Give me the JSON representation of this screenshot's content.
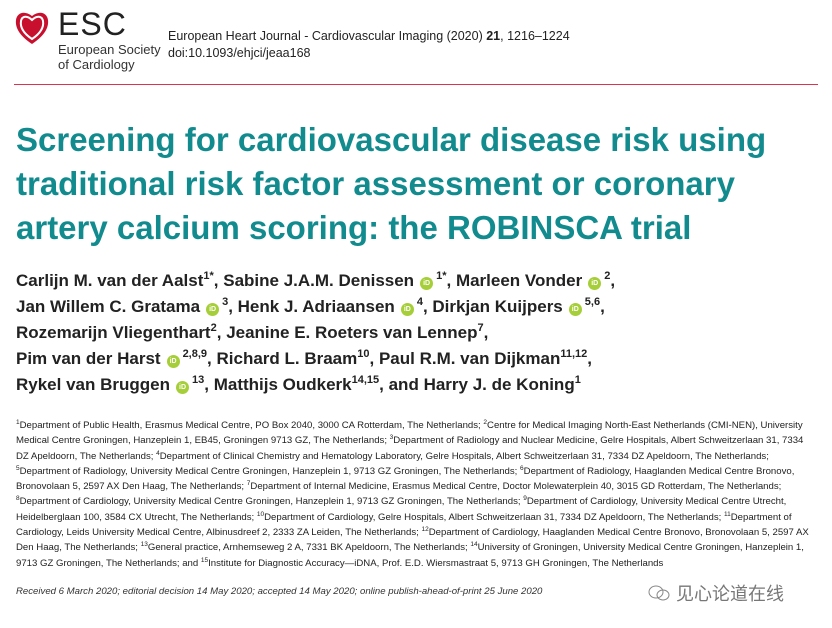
{
  "header": {
    "logo_text": "ESC",
    "society_line1": "European Society",
    "society_line2": "of Cardiology",
    "journal_prefix": "European Heart Journal - Cardiovascular Imaging (2020) ",
    "volume": "21",
    "pages": ", 1216–1224",
    "doi": "doi:10.1093/ehjci/jeaa168"
  },
  "title": "Screening for cardiovascular disease risk using traditional risk factor assessment or coronary artery calcium scoring: the ROBINSCA trial",
  "author_lines": [
    [
      {
        "name": "Carlijn M. van der Aalst",
        "orcid": false,
        "sup": "1*",
        "sep": ", "
      },
      {
        "name": "Sabine J.A.M. Denissen",
        "orcid": true,
        "sup": "1*",
        "sep": ", "
      },
      {
        "name": "Marleen Vonder",
        "orcid": true,
        "sup": "2",
        "sep": ","
      }
    ],
    [
      {
        "name": "Jan Willem C. Gratama",
        "orcid": true,
        "sup": "3",
        "sep": ", "
      },
      {
        "name": "Henk J. Adriaansen",
        "orcid": true,
        "sup": "4",
        "sep": ", "
      },
      {
        "name": "Dirkjan Kuijpers",
        "orcid": true,
        "sup": "5,6",
        "sep": ","
      }
    ],
    [
      {
        "name": "Rozemarijn Vliegenthart",
        "orcid": false,
        "sup": "2",
        "sep": ", "
      },
      {
        "name": "Jeanine E. Roeters van Lennep",
        "orcid": false,
        "sup": "7",
        "sep": ","
      }
    ],
    [
      {
        "name": "Pim van der Harst",
        "orcid": true,
        "sup": "2,8,9",
        "sep": ", "
      },
      {
        "name": "Richard L. Braam",
        "orcid": false,
        "sup": "10",
        "sep": ", "
      },
      {
        "name": "Paul R.M. van Dijkman",
        "orcid": false,
        "sup": "11,12",
        "sep": ","
      }
    ],
    [
      {
        "name": "Rykel van Bruggen",
        "orcid": true,
        "sup": "13",
        "sep": ", "
      },
      {
        "name": "Matthijs Oudkerk",
        "orcid": false,
        "sup": "14,15",
        "sep": ", and "
      },
      {
        "name": "Harry J. de Koning",
        "orcid": false,
        "sup": "1",
        "sep": ""
      }
    ]
  ],
  "orcid_label": "iD",
  "affiliations": [
    {
      "num": "1",
      "text": "Department of Public Health, Erasmus Medical Centre, PO Box 2040, 3000 CA Rotterdam, The Netherlands; "
    },
    {
      "num": "2",
      "text": "Centre for Medical Imaging North-East Netherlands (CMI-NEN), University Medical Centre Groningen, Hanzeplein 1, EB45, Groningen 9713 GZ, The Netherlands; "
    },
    {
      "num": "3",
      "text": "Department of Radiology and Nuclear Medicine, Gelre Hospitals, Albert Schweitzerlaan 31, 7334 DZ Apeldoorn, The Netherlands; "
    },
    {
      "num": "4",
      "text": "Department of Clinical Chemistry and Hematology Laboratory, Gelre Hospitals, Albert Schweitzerlaan 31, 7334 DZ Apeldoorn, The Netherlands; "
    },
    {
      "num": "5",
      "text": "Department of Radiology, University Medical Centre Groningen, Hanzeplein 1, 9713 GZ Groningen, The Netherlands; "
    },
    {
      "num": "6",
      "text": "Department of Radiology, Haaglanden Medical Centre Bronovo, Bronovolaan 5, 2597 AX Den Haag, The Netherlands; "
    },
    {
      "num": "7",
      "text": "Department of Internal Medicine, Erasmus Medical Centre, Doctor Molewaterplein 40, 3015 GD Rotterdam, The Netherlands; "
    },
    {
      "num": "8",
      "text": "Department of Cardiology, University Medical Centre Groningen, Hanzeplein 1, 9713 GZ Groningen, The Netherlands; "
    },
    {
      "num": "9",
      "text": "Department of Cardiology, University Medical Centre Utrecht, Heidelberglaan 100, 3584 CX Utrecht, The Netherlands; "
    },
    {
      "num": "10",
      "text": "Department of Cardiology, Gelre Hospitals, Albert Schweitzerlaan 31, 7334 DZ Apeldoorn, The Netherlands; "
    },
    {
      "num": "11",
      "text": "Department of Cardiology, Leids University Medical Centre, Albinusdreef 2, 2333 ZA Leiden, The Netherlands; "
    },
    {
      "num": "12",
      "text": "Department of Cardiology, Haaglanden Medical Centre Bronovo, Bronovolaan 5, 2597 AX Den Haag, The Netherlands; "
    },
    {
      "num": "13",
      "text": "General practice, Arnhemseweg 2 A, 7331 BK Apeldoorn, The Netherlands; "
    },
    {
      "num": "14",
      "text": "University of Groningen, University Medical Centre Groningen, Hanzeplein 1, 9713 GZ Groningen, The Netherlands; and "
    },
    {
      "num": "15",
      "text": "Institute for Diagnostic Accuracy—iDNA, Prof. E.D. Wiersmastraat 5, 9713 GH Groningen, The Netherlands"
    }
  ],
  "received": "Received 6 March 2020; editorial decision 14 May 2020; accepted 14 May 2020; online publish-ahead-of-print 25 June 2020",
  "watermark": "见心论道在线",
  "colors": {
    "title": "#128b8f",
    "rule": "#d9354f",
    "logo": "#c8102e",
    "orcid": "#a6ce39"
  }
}
